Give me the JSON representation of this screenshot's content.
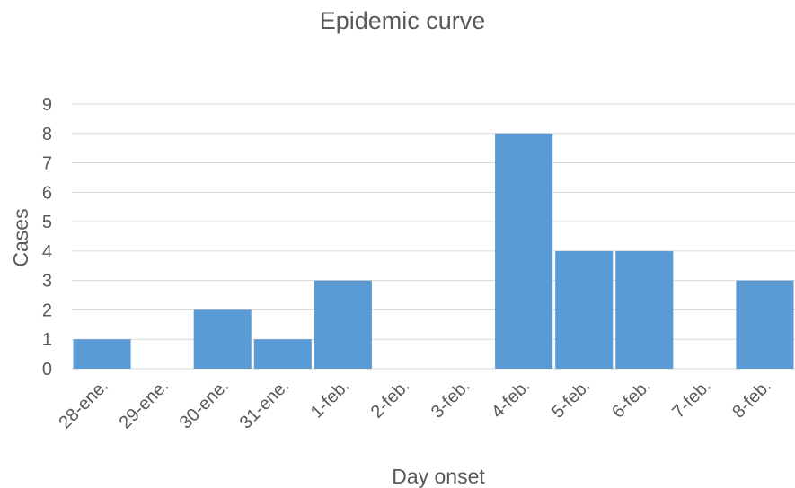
{
  "chart_data": {
    "type": "bar",
    "title": "Epidemic curve",
    "xlabel": "Day onset",
    "ylabel": "Cases",
    "categories": [
      "28-ene.",
      "29-ene.",
      "30-ene.",
      "31-ene.",
      "1-feb.",
      "2-feb.",
      "3-feb.",
      "4-feb.",
      "5-feb.",
      "6-feb.",
      "7-feb.",
      "8-feb."
    ],
    "values": [
      1,
      0,
      2,
      1,
      3,
      0,
      0,
      8,
      4,
      4,
      0,
      3
    ],
    "ylim": [
      0,
      9
    ],
    "yticks": [
      "0",
      "1",
      "2",
      "3",
      "4",
      "5",
      "6",
      "7",
      "8",
      "9"
    ],
    "grid": true,
    "bar_color": "#5b9bd5",
    "grid_color": "#d9d9d9",
    "text_color": "#595959"
  }
}
